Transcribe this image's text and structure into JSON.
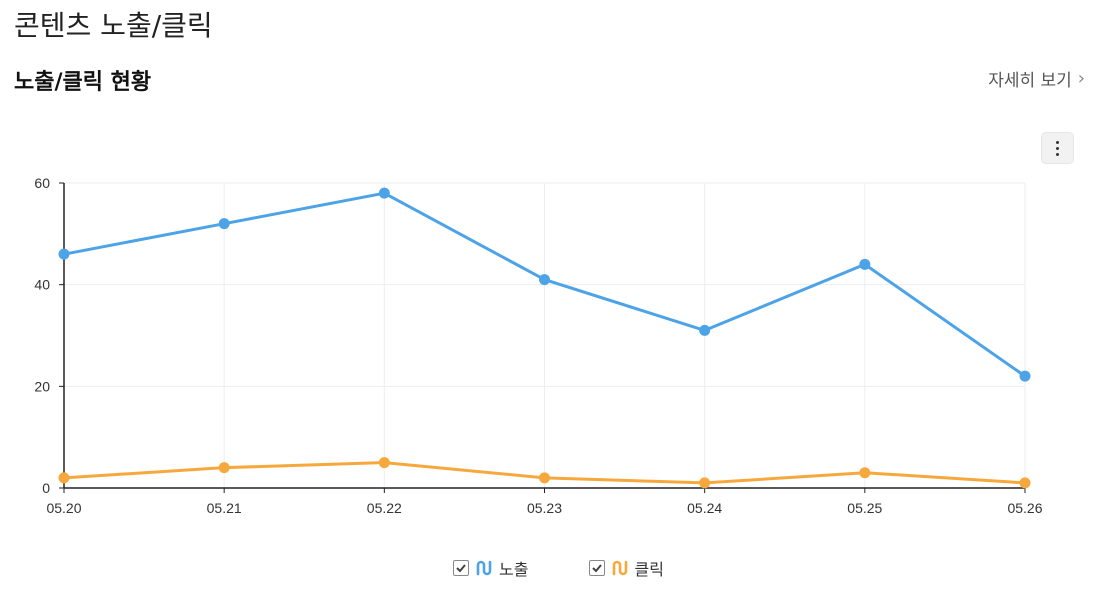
{
  "page": {
    "title": "콘텐츠 노출/클릭"
  },
  "section": {
    "title": "노출/클릭 현황",
    "detail_label": "자세히 보기",
    "detail_icon": "chevron-right-icon",
    "menu_icon": "more-vertical-icon"
  },
  "colors": {
    "impressions": "#4da3e8",
    "clicks": "#f7a83c",
    "grid": "#eeeeee",
    "axis": "#222222"
  },
  "chart_data": {
    "type": "line",
    "categories": [
      "05.20",
      "05.21",
      "05.22",
      "05.23",
      "05.24",
      "05.25",
      "05.26"
    ],
    "series": [
      {
        "name": "노출",
        "values": [
          46,
          52,
          58,
          41,
          31,
          44,
          22
        ]
      },
      {
        "name": "클릭",
        "values": [
          2,
          4,
          5,
          2,
          1,
          3,
          1
        ]
      }
    ],
    "ylim": [
      0,
      60
    ],
    "yticks": [
      0,
      20,
      40,
      60
    ],
    "grid": true,
    "legend_position": "bottom"
  },
  "legend": [
    {
      "label": "노출",
      "checked": true
    },
    {
      "label": "클릭",
      "checked": true
    }
  ]
}
